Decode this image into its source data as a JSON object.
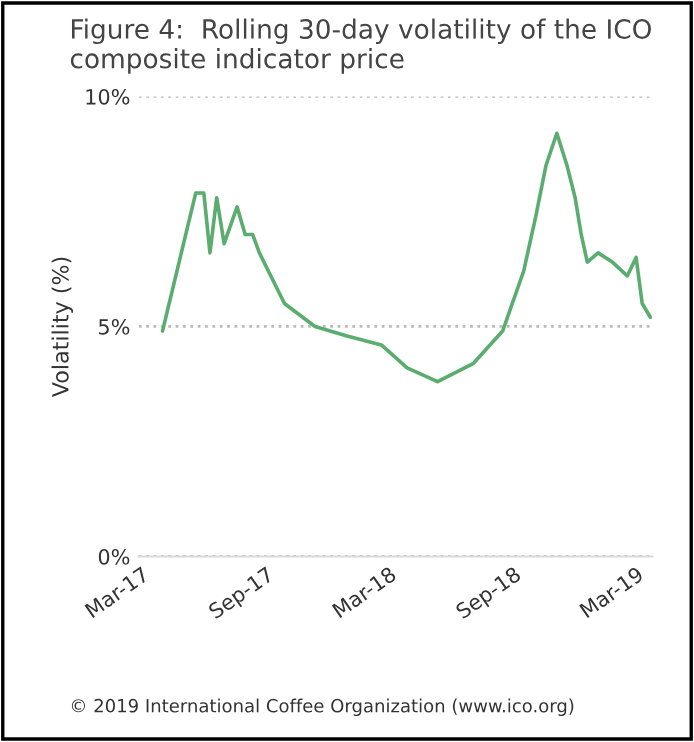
{
  "chart_data": {
    "type": "line",
    "title": "Figure 4:  Rolling 30-day volatility of the ICO composite indicator price",
    "ylabel": "Volatility (%)",
    "annotations": [
      "© 2019 International Coffee Organization (www.ico.org)"
    ],
    "x": [
      "2017-04-01",
      "2017-05-20",
      "2017-06-01",
      "2017-06-10",
      "2017-06-20",
      "2017-07-01",
      "2017-07-20",
      "2017-08-01",
      "2017-08-12",
      "2017-08-22",
      "2017-09-28",
      "2017-11-12",
      "2017-12-28",
      "2018-02-18",
      "2018-03-28",
      "2018-05-12",
      "2018-07-04",
      "2018-08-16",
      "2018-09-16",
      "2018-10-04",
      "2018-10-19",
      "2018-11-04",
      "2018-11-19",
      "2018-12-01",
      "2018-12-10",
      "2018-12-19",
      "2019-01-04",
      "2019-01-25",
      "2019-02-16",
      "2019-03-01",
      "2019-03-10",
      "2019-03-22"
    ],
    "series": [
      {
        "color": "#5aad6e",
        "values": [
          4.9,
          7.9,
          7.9,
          6.6,
          7.8,
          6.8,
          7.6,
          7.0,
          7.0,
          6.6,
          5.5,
          5.0,
          4.8,
          4.6,
          4.1,
          3.8,
          4.2,
          4.9,
          6.2,
          7.4,
          8.5,
          9.2,
          8.5,
          7.8,
          7.0,
          6.4,
          6.6,
          6.4,
          6.1,
          6.5,
          5.5,
          5.2
        ]
      }
    ],
    "xlim": [
      "2017-02-25",
      "2019-03-25"
    ],
    "xticks": [
      {
        "value": "2017-03-01",
        "label": "Mar-17"
      },
      {
        "value": "2017-09-01",
        "label": "Sep-17"
      },
      {
        "value": "2018-03-01",
        "label": "Mar-18"
      },
      {
        "value": "2018-09-01",
        "label": "Sep-18"
      },
      {
        "value": "2019-03-01",
        "label": "Mar-19"
      }
    ],
    "ylim": [
      0,
      10
    ],
    "yticks": [
      {
        "value": 0,
        "label": "0%"
      },
      {
        "value": 5,
        "label": "5%"
      },
      {
        "value": 10,
        "label": "10%"
      }
    ],
    "grid": "y",
    "line_style": "solid",
    "marker": "none",
    "legend": false
  }
}
